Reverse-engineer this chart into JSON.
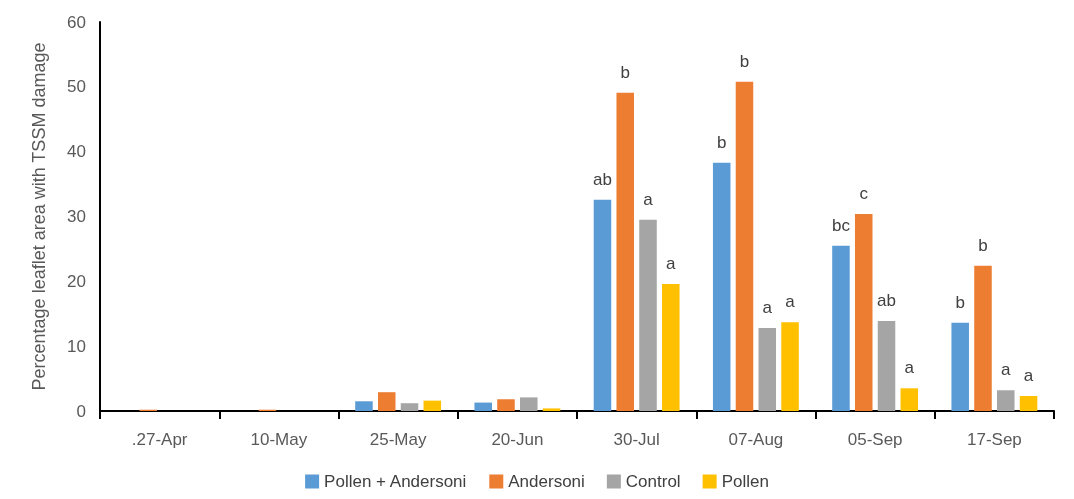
{
  "chart_data": {
    "type": "bar",
    "ylabel": "Percentage leaflet area with TSSM damage",
    "categories": [
      ".27-Apr",
      "10-May",
      "25-May",
      "20-Jun",
      "30-Jul",
      "07-Aug",
      "05-Sep",
      "17-Sep"
    ],
    "series": [
      {
        "name": "Pollen + Andersoni",
        "color": "#5b9bd5",
        "values": [
          0,
          0,
          1.5,
          1.3,
          32.6,
          38.3,
          25.5,
          13.6
        ],
        "value_labels": [
          null,
          null,
          null,
          null,
          "ab",
          "b",
          "bc",
          "b"
        ]
      },
      {
        "name": "Andersoni",
        "color": "#ed7d31",
        "values": [
          0.2,
          0.2,
          2.9,
          1.8,
          49.1,
          50.8,
          30.4,
          22.4
        ],
        "value_labels": [
          null,
          null,
          null,
          null,
          "b",
          "b",
          "c",
          "b"
        ]
      },
      {
        "name": "Control",
        "color": "#a5a5a5",
        "values": [
          0,
          0,
          1.2,
          2.1,
          29.5,
          12.8,
          13.9,
          3.2
        ],
        "value_labels": [
          null,
          null,
          null,
          null,
          "a",
          "a",
          "ab",
          "a"
        ]
      },
      {
        "name": "Pollen",
        "color": "#ffc000",
        "values": [
          0,
          0,
          1.6,
          0.4,
          19.6,
          13.7,
          3.5,
          2.3
        ],
        "value_labels": [
          null,
          null,
          null,
          null,
          "a",
          "a",
          "a",
          "a"
        ]
      }
    ],
    "ylim": [
      0,
      60
    ],
    "yticks": [
      0,
      10,
      20,
      30,
      40,
      50,
      60
    ],
    "grid": false,
    "legend": "bottom"
  }
}
